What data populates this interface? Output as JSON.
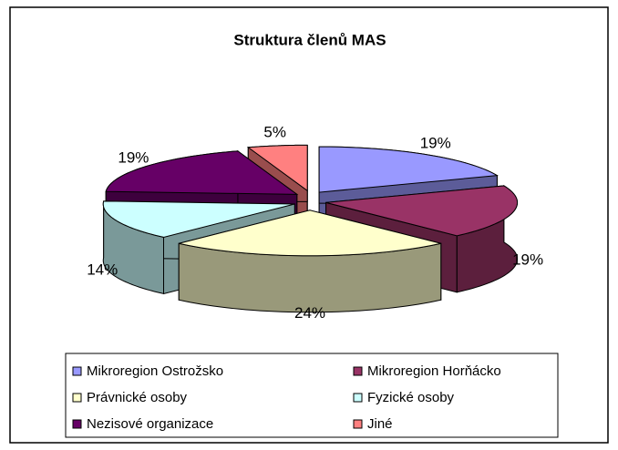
{
  "chart_data": {
    "type": "pie",
    "title": "Struktura členů MAS",
    "categories": [
      "Mikroregion Ostrožsko",
      "Mikroregion Horňácko",
      "Právnické osoby",
      "Fyzické osoby",
      "Nezisové organizace",
      "Jiné"
    ],
    "values": [
      19,
      19,
      24,
      14,
      19,
      5
    ],
    "value_labels": [
      "19%",
      "19%",
      "24%",
      "14%",
      "19%",
      "5%"
    ],
    "colors": [
      "#9999ff",
      "#993366",
      "#ffffcc",
      "#ccffff",
      "#660066",
      "#ff8080"
    ],
    "legend": "bottom"
  }
}
